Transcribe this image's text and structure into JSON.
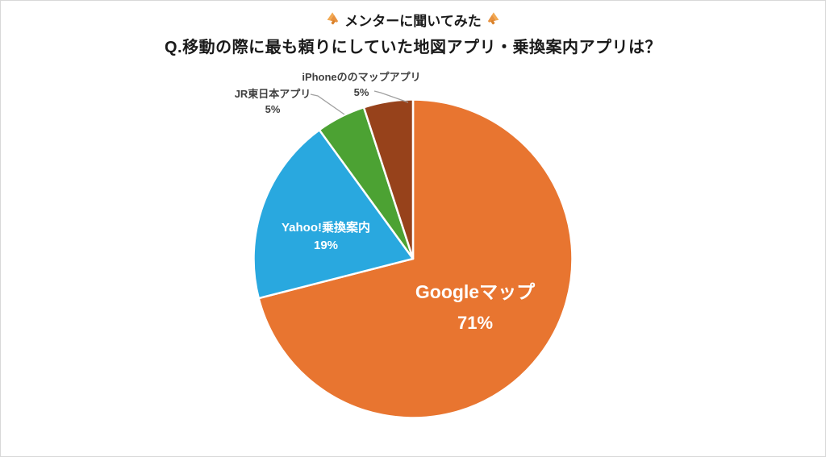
{
  "page": {
    "title": "メンターに聞いてみた",
    "question": "Q.移動の際に最も頼りにしていた地図アプリ・乗換案内アプリは？"
  },
  "icons": {
    "title_left": "megaphone-icon",
    "title_right": "megaphone-icon"
  },
  "chart_data": {
    "type": "pie",
    "title": "メンターに聞いてみた",
    "subtitle": "Q.移動の際に最も頼りにしていた地図アプリ・乗換案内アプリは？",
    "unit": "%",
    "start_angle_deg": 0,
    "direction": "clockwise",
    "legend": "none",
    "slices": [
      {
        "label": "Googleマップ",
        "value": 71,
        "color": "#E87530",
        "label_placement": "inside"
      },
      {
        "label": "Yahoo!乗換案内",
        "value": 19,
        "color": "#29A8DF",
        "label_placement": "inside"
      },
      {
        "label": "JR東日本アプリ",
        "value": 5,
        "color": "#4CA233",
        "label_placement": "outside"
      },
      {
        "label": "iPhoneののマップアプリ",
        "value": 5,
        "color": "#97421B",
        "label_placement": "outside"
      }
    ],
    "style_colors": {
      "inside_label_text": "#FFFFFF",
      "outside_label_text": "#3F3F3F",
      "leader_line": "#A0A0A0",
      "slice_separator": "#FFFFFF"
    }
  }
}
